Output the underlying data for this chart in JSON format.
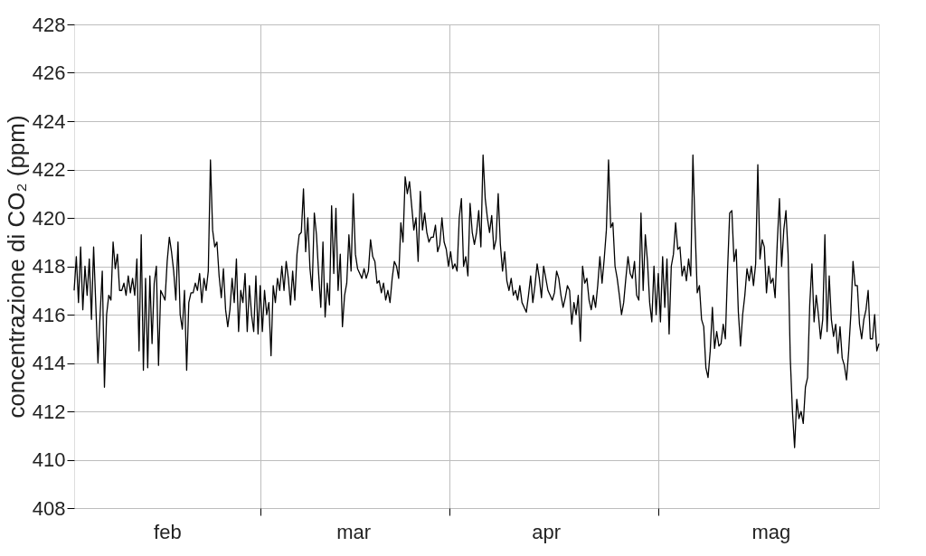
{
  "chart_data": {
    "type": "line",
    "ylabel": "concentrazione di CO₂ (ppm)",
    "categories": [
      null,
      null,
      null,
      null,
      null,
      null,
      null,
      null,
      null,
      null,
      null,
      null,
      null,
      null,
      null,
      null,
      null,
      null,
      null,
      null,
      null,
      null,
      null,
      null,
      null,
      null,
      null,
      null,
      null,
      null,
      null,
      null,
      null,
      null,
      null,
      null,
      null,
      null,
      null,
      null,
      null,
      null,
      null,
      "feb",
      null,
      null,
      null,
      null,
      null,
      null,
      null,
      null,
      null,
      null,
      null,
      null,
      null,
      null,
      null,
      null,
      null,
      null,
      null,
      null,
      null,
      null,
      null,
      null,
      null,
      null,
      null,
      null,
      null,
      null,
      null,
      null,
      null,
      null,
      null,
      null,
      null,
      null,
      null,
      null,
      null,
      null,
      null,
      null,
      null,
      null,
      null,
      null,
      null,
      null,
      null,
      null,
      null,
      null,
      null,
      null,
      null,
      null,
      null,
      null,
      null,
      null,
      null,
      null,
      null,
      null,
      null,
      null,
      null,
      null,
      null,
      null,
      null,
      null,
      null,
      null,
      null,
      null,
      null,
      null,
      null,
      null,
      null,
      null,
      null,
      "mar",
      null,
      null,
      null,
      null,
      null,
      null,
      null,
      null,
      null,
      null,
      null,
      null,
      null,
      null,
      null,
      null,
      null,
      null,
      null,
      null,
      null,
      null,
      null,
      null,
      null,
      null,
      null,
      null,
      null,
      null,
      null,
      null,
      null,
      null,
      null,
      null,
      null,
      null,
      null,
      null,
      null,
      null,
      null,
      null,
      null,
      null,
      null,
      null,
      null,
      null,
      null,
      null,
      null,
      null,
      null,
      null,
      null,
      null,
      null,
      null,
      null,
      null,
      null,
      null,
      null,
      null,
      null,
      null,
      null,
      null,
      null,
      null,
      null,
      null,
      null,
      null,
      null,
      null,
      null,
      null,
      null,
      null,
      null,
      null,
      null,
      null,
      null,
      null,
      "apr",
      null,
      null,
      null,
      null,
      null,
      null,
      null,
      null,
      null,
      null,
      null,
      null,
      null,
      null,
      null,
      null,
      null,
      null,
      null,
      null,
      null,
      null,
      null,
      null,
      null,
      null,
      null,
      null,
      null,
      null,
      null,
      null,
      null,
      null,
      null,
      null,
      null,
      null,
      null,
      null,
      null,
      null,
      null,
      null,
      null,
      null,
      null,
      null,
      null,
      null,
      null,
      null,
      null,
      null,
      null,
      null,
      null,
      null,
      null,
      null,
      null,
      null,
      null,
      null,
      null,
      null,
      null,
      null,
      null,
      null,
      null,
      null,
      null,
      null,
      null,
      null,
      null,
      null,
      null,
      null,
      null,
      null,
      null,
      null,
      null,
      null,
      null,
      null,
      null,
      null,
      null,
      null,
      null,
      null,
      null,
      null,
      null,
      null,
      null,
      null,
      null,
      null,
      null,
      "mag",
      null,
      null,
      null,
      null,
      null,
      null,
      null,
      null,
      null,
      null,
      null,
      null,
      null,
      null,
      null,
      null,
      null,
      null,
      null,
      null,
      null,
      null,
      null,
      null,
      null,
      null,
      null,
      null,
      null,
      null,
      null,
      null,
      null,
      null,
      null,
      null,
      null,
      null,
      null,
      null,
      null,
      null,
      null,
      null,
      null,
      null,
      null,
      null,
      null,
      null
    ],
    "values": [
      417.0,
      418.4,
      416.5,
      418.8,
      416.2,
      418.0,
      416.8,
      418.3,
      415.8,
      418.8,
      416.4,
      414.0,
      416.0,
      417.8,
      413.0,
      416.0,
      416.8,
      416.6,
      419.0,
      417.9,
      418.5,
      417.0,
      417.0,
      417.3,
      416.8,
      417.6,
      416.9,
      417.5,
      416.8,
      418.3,
      414.5,
      419.3,
      413.7,
      417.5,
      413.8,
      417.6,
      414.8,
      417.3,
      418.0,
      413.9,
      417.0,
      416.8,
      416.6,
      418.2,
      419.2,
      418.6,
      417.8,
      416.6,
      419.0,
      416.0,
      415.4,
      417.0,
      413.7,
      416.5,
      416.9,
      416.9,
      417.3,
      417.0,
      417.7,
      416.5,
      417.5,
      417.0,
      417.8,
      422.4,
      419.5,
      418.8,
      419.0,
      417.6,
      416.7,
      417.9,
      416.2,
      415.5,
      416.2,
      417.5,
      416.5,
      418.3,
      415.3,
      417.0,
      416.5,
      417.7,
      415.3,
      417.2,
      416.0,
      415.3,
      417.6,
      415.2,
      417.2,
      415.3,
      417.0,
      416.0,
      416.5,
      414.3,
      417.2,
      416.5,
      417.5,
      417.0,
      418.0,
      417.0,
      418.2,
      417.5,
      416.4,
      417.8,
      416.6,
      418.5,
      419.3,
      419.4,
      421.2,
      418.6,
      420.0,
      417.9,
      417.0,
      420.2,
      419.3,
      417.7,
      416.3,
      419.0,
      415.9,
      417.3,
      416.4,
      420.5,
      417.7,
      420.4,
      417.0,
      418.5,
      415.5,
      416.8,
      417.3,
      419.3,
      417.8,
      421.0,
      418.5,
      417.9,
      417.7,
      417.5,
      417.9,
      417.5,
      417.8,
      419.1,
      418.4,
      418.2,
      417.3,
      417.4,
      416.9,
      417.3,
      416.6,
      417.0,
      416.5,
      417.5,
      418.2,
      418.0,
      417.5,
      419.8,
      419.0,
      421.7,
      421.0,
      421.5,
      420.5,
      419.5,
      420.0,
      418.2,
      421.1,
      419.5,
      420.2,
      419.4,
      419.0,
      419.2,
      419.2,
      419.7,
      418.6,
      418.9,
      420.0,
      419.0,
      418.7,
      418.0,
      418.6,
      417.9,
      418.1,
      417.8,
      420.0,
      420.8,
      418.0,
      418.4,
      417.6,
      420.6,
      419.4,
      418.9,
      419.4,
      420.3,
      418.8,
      422.6,
      420.8,
      420.0,
      419.4,
      420.1,
      418.7,
      419.1,
      421.0,
      418.9,
      417.8,
      418.6,
      417.4,
      417.0,
      417.5,
      416.8,
      417.0,
      416.6,
      417.2,
      416.5,
      416.3,
      416.1,
      416.8,
      417.6,
      416.5,
      417.2,
      418.1,
      417.5,
      416.7,
      418.0,
      417.5,
      417.0,
      416.8,
      416.6,
      416.9,
      417.8,
      417.5,
      416.8,
      416.3,
      416.7,
      417.2,
      417.0,
      415.6,
      416.5,
      416.0,
      416.8,
      414.9,
      418.0,
      417.3,
      417.5,
      416.6,
      416.2,
      416.8,
      416.3,
      417.2,
      418.4,
      417.3,
      418.3,
      419.5,
      422.4,
      419.6,
      419.8,
      418.0,
      417.5,
      416.8,
      416.0,
      416.5,
      417.5,
      418.4,
      417.7,
      417.5,
      418.2,
      416.8,
      416.6,
      420.2,
      417.0,
      419.3,
      418.2,
      416.5,
      415.7,
      418.0,
      416.0,
      417.7,
      415.7,
      418.4,
      416.3,
      418.3,
      415.2,
      418.0,
      418.5,
      419.8,
      418.7,
      418.8,
      417.6,
      418.0,
      417.4,
      418.3,
      417.6,
      422.6,
      419.6,
      416.9,
      417.2,
      415.8,
      415.5,
      413.8,
      413.4,
      414.5,
      416.3,
      414.6,
      415.3,
      414.7,
      414.8,
      415.6,
      415.0,
      417.8,
      420.2,
      420.3,
      418.2,
      418.7,
      416.1,
      414.7,
      416.0,
      416.8,
      417.9,
      417.4,
      418.0,
      417.2,
      418.1,
      422.2,
      418.3,
      419.1,
      418.8,
      416.9,
      418.0,
      417.3,
      417.5,
      416.7,
      419.0,
      420.8,
      418.0,
      419.5,
      420.3,
      418.5,
      414.2,
      412.0,
      410.5,
      412.5,
      411.7,
      412.0,
      411.5,
      413.0,
      413.4,
      416.4,
      418.1,
      415.7,
      416.8,
      416.0,
      415.0,
      415.8,
      419.3,
      415.3,
      417.6,
      415.8,
      415.1,
      415.6,
      414.4,
      415.5,
      414.2,
      413.9,
      413.3,
      414.5,
      416.0,
      418.2,
      417.2,
      417.2,
      415.6,
      415.0,
      415.8,
      416.2,
      417.0,
      415.0,
      415.0,
      416.0,
      414.5,
      414.8
    ],
    "color": "#000000",
    "ylim": [
      408,
      428
    ],
    "yticks": [
      408,
      410,
      412,
      414,
      416,
      418,
      420,
      422,
      424,
      426,
      428
    ],
    "grid": true,
    "marker": "none",
    "line_style": "solid"
  }
}
